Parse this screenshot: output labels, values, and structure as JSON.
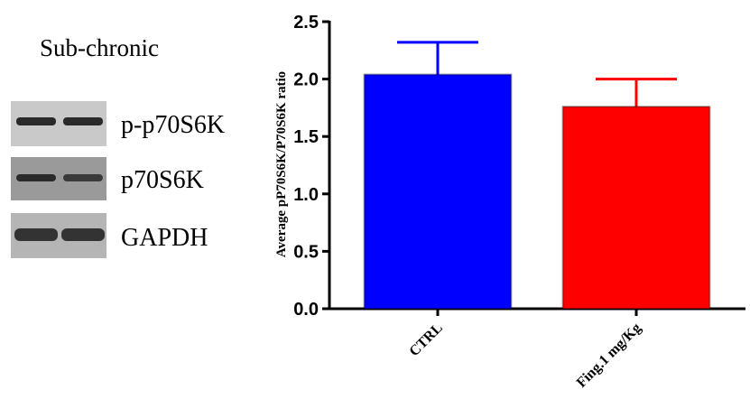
{
  "blot": {
    "title": "Sub-chronic",
    "labels": [
      "p-p70S6K",
      "p70S6K",
      "GAPDH"
    ]
  },
  "chart_data": {
    "type": "bar",
    "ylabel": "Average pP70S6K/P70S6K ratio",
    "categories": [
      "CTRL",
      "Fing.1 mg/Kg"
    ],
    "values": [
      2.04,
      1.76
    ],
    "errors": [
      0.28,
      0.24
    ],
    "colors": [
      "#0000ff",
      "#ff0000"
    ],
    "ylim": [
      0,
      2.5
    ],
    "yticks": [
      {
        "value": 0,
        "label": "0.0"
      },
      0.5,
      {
        "value": 1,
        "label": "1.0"
      },
      1.5,
      {
        "value": 2,
        "label": "2.0"
      },
      2.5
    ]
  }
}
